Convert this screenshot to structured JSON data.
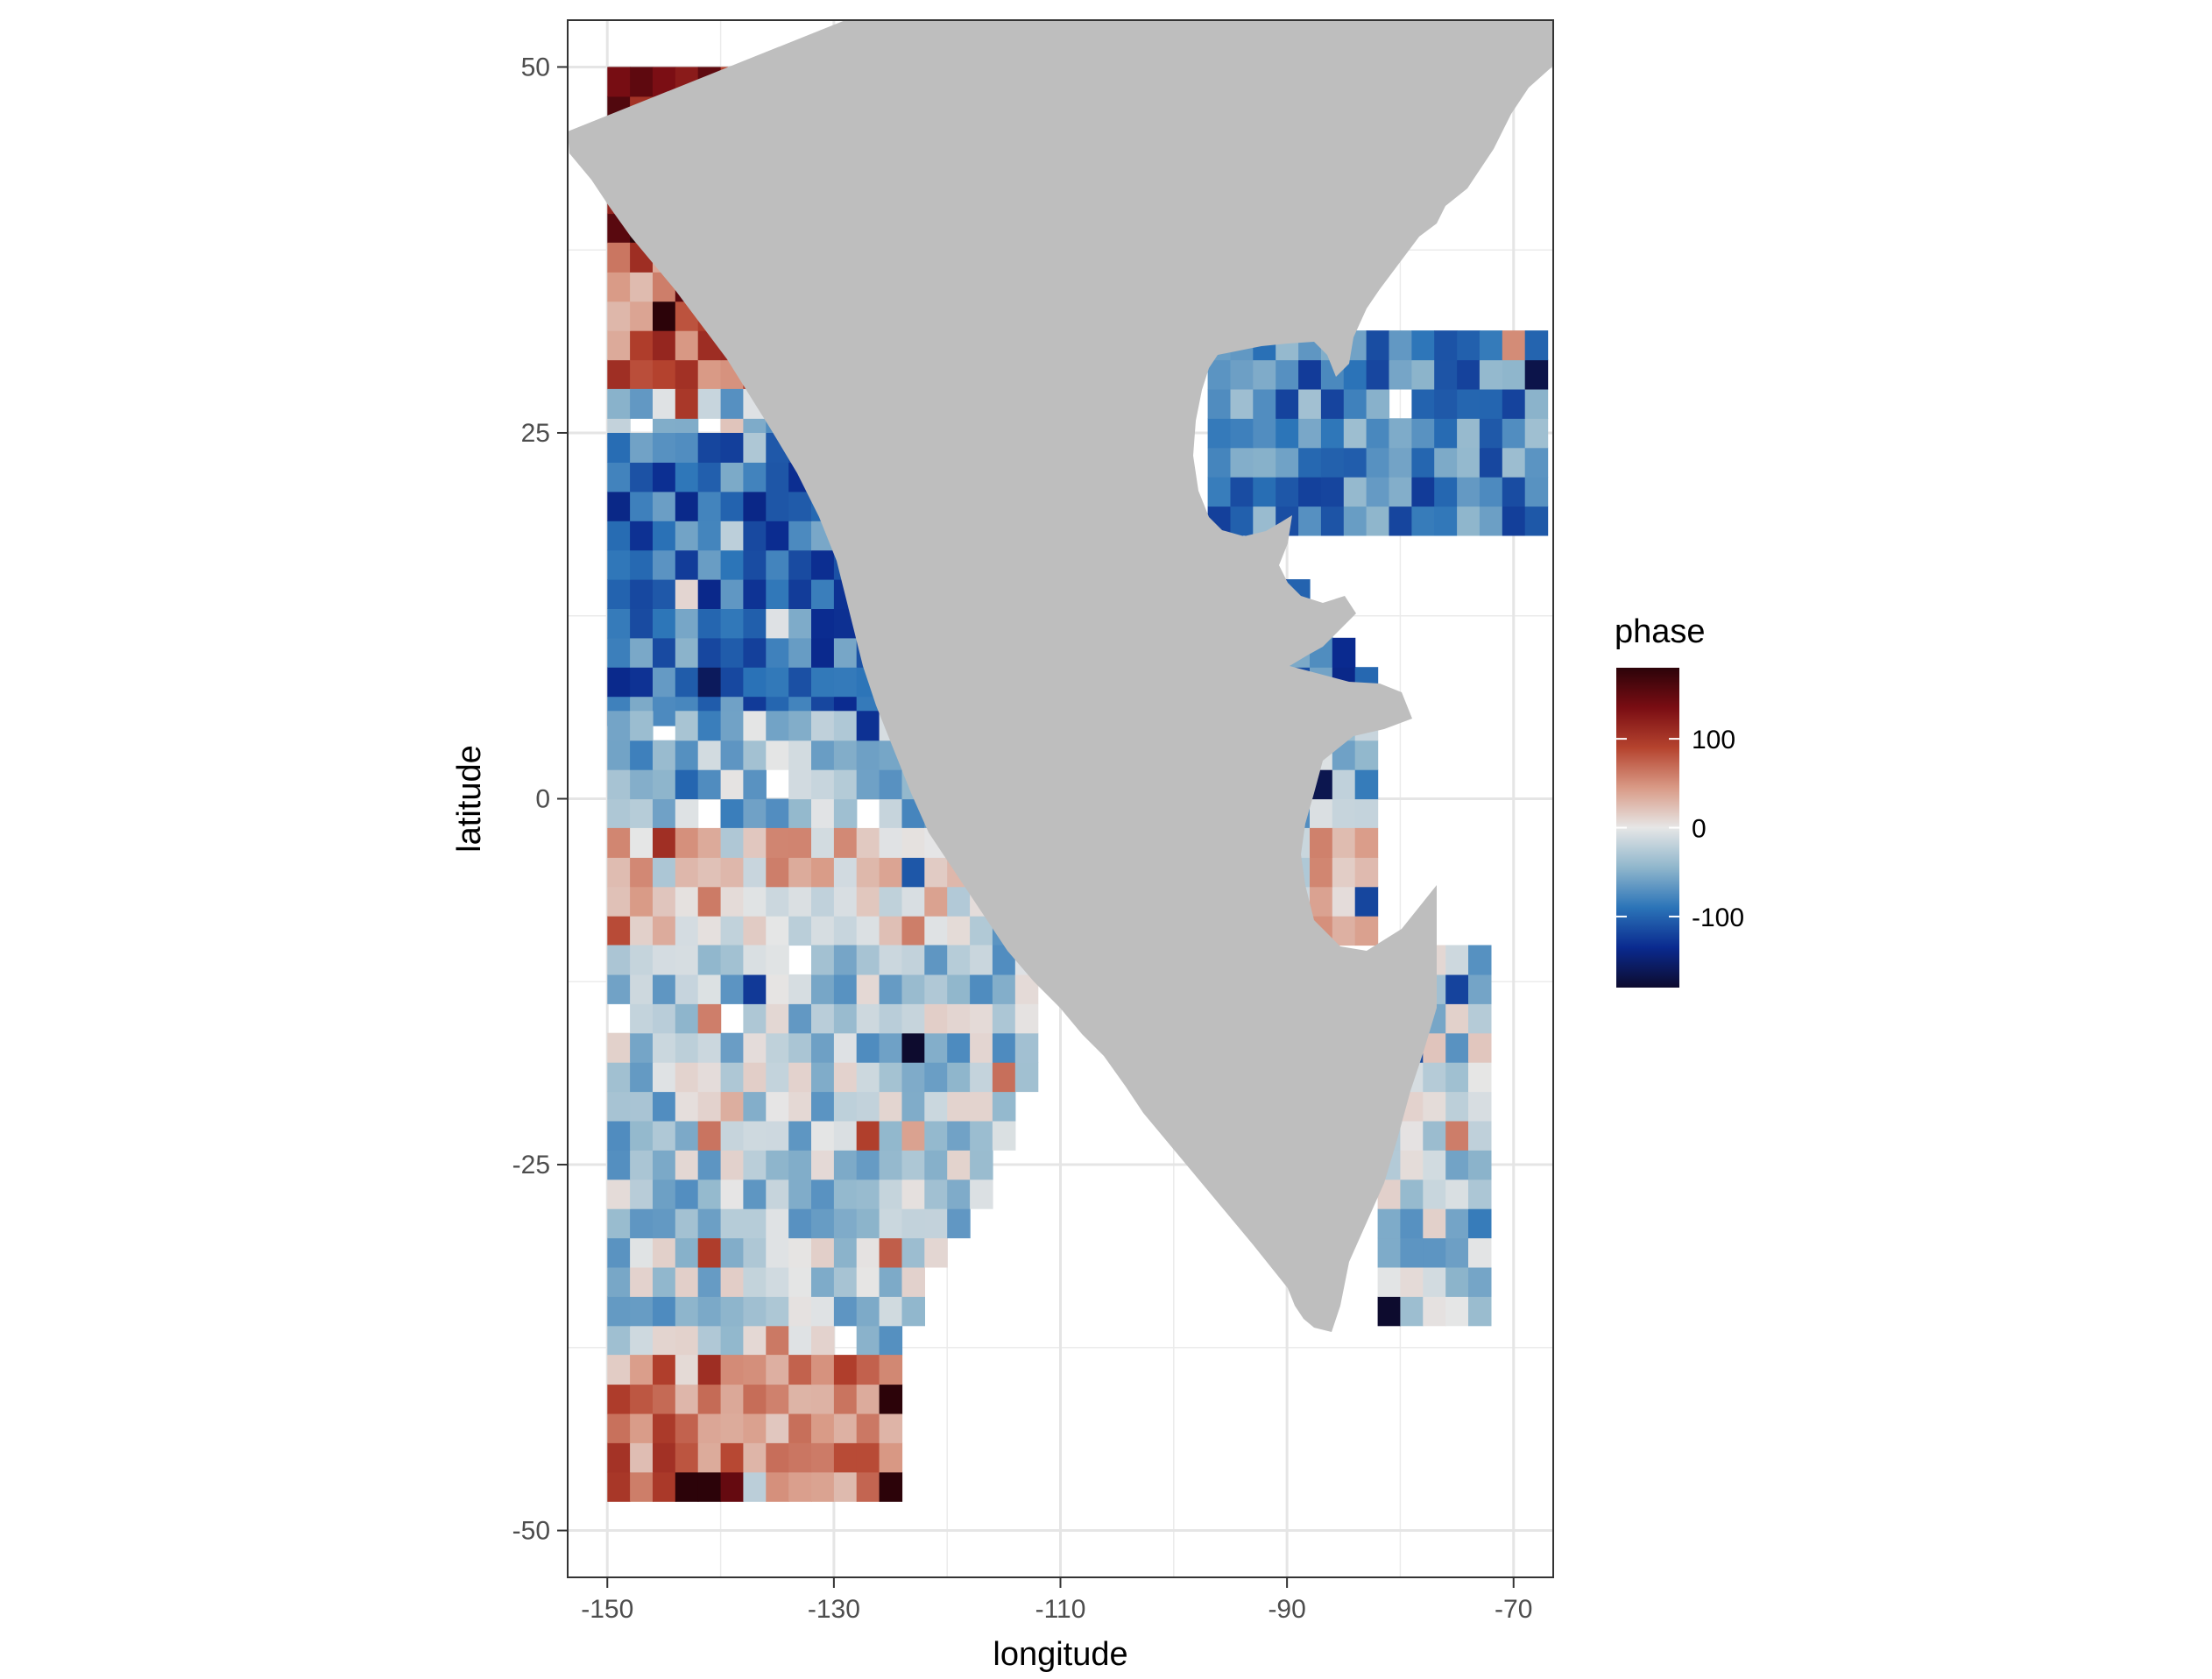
{
  "chart_data": {
    "type": "heatmap",
    "title": "",
    "xlabel": "longitude",
    "ylabel": "latitude",
    "xlim": [
      -153.5,
      -66.5
    ],
    "ylim": [
      -53.2,
      53.2
    ],
    "x_ticks": [
      -150,
      -130,
      -110,
      -90,
      -70
    ],
    "y_ticks": [
      -50,
      -25,
      0,
      25,
      50
    ],
    "x_tick_labels": [
      "-150",
      "-130",
      "-110",
      "-90",
      "-70"
    ],
    "y_tick_labels": [
      "-50",
      "-25",
      "0",
      "25",
      "50"
    ],
    "grid": true,
    "land_color": "#bebebe",
    "legend": {
      "title": "phase",
      "position": "right",
      "type": "colorbar",
      "range": [
        -180,
        180
      ],
      "breaks": [
        100,
        0,
        -100
      ],
      "break_labels": [
        "100",
        "0",
        "-100"
      ],
      "colors": [
        "#0d0b2e",
        "#0a2a8f",
        "#2b74b8",
        "#8fb6cc",
        "#e6e6e6",
        "#d99a86",
        "#b5432e",
        "#7a0d13",
        "#2c0309"
      ]
    },
    "phase_bands": [
      {
        "lat_range": [
          38,
          49
        ],
        "lon_range": [
          -150,
          -125
        ],
        "phase": 140,
        "note_hint": ""
      },
      {
        "lat_range": [
          28,
          38
        ],
        "lon_range": [
          -150,
          -118
        ],
        "phase": 70
      },
      {
        "lat_range": [
          24,
          28
        ],
        "lon_range": [
          -150,
          -112
        ],
        "phase": -40
      },
      {
        "lat_range": [
          5,
          24
        ],
        "lon_range": [
          -150,
          -83
        ],
        "phase": -95
      },
      {
        "lat_range": [
          -2,
          5
        ],
        "lon_range": [
          -150,
          -82
        ],
        "phase": -40
      },
      {
        "lat_range": [
          -10,
          -2
        ],
        "lon_range": [
          -150,
          -82
        ],
        "phase": 15
      },
      {
        "lat_range": [
          -38,
          -10
        ],
        "lon_range": [
          -150,
          -112
        ],
        "phase": -30
      },
      {
        "lat_range": [
          -48,
          -38
        ],
        "lon_range": [
          -150,
          -125
        ],
        "phase": 60
      },
      {
        "lat_range": [
          18,
          31
        ],
        "lon_range": [
          -97,
          -68
        ],
        "phase": -80
      },
      {
        "lat_range": [
          -36,
          -10
        ],
        "lon_range": [
          -82,
          -73
        ],
        "phase": -30
      }
    ]
  }
}
